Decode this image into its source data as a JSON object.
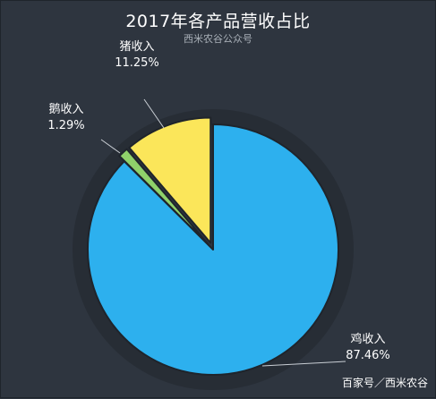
{
  "header": {
    "title": "2017年各产品营收占比",
    "subtitle": "西米农谷公众号"
  },
  "watermark": "百家号／西米农谷",
  "chart_data": {
    "type": "pie",
    "title": "2017年各产品营收占比",
    "subtitle": "西米农谷公众号",
    "slices": [
      {
        "label": "鸡收入",
        "value": 87.46,
        "display": "87.46%",
        "color": "#2db0ee",
        "exploded": false
      },
      {
        "label": "鹅收入",
        "value": 1.29,
        "display": "1.29%",
        "color": "#8fd16a",
        "exploded": true
      },
      {
        "label": "猪收入",
        "value": 11.25,
        "display": "11.25%",
        "color": "#fbe65a",
        "exploded": true
      }
    ],
    "background": "#2e353f"
  }
}
